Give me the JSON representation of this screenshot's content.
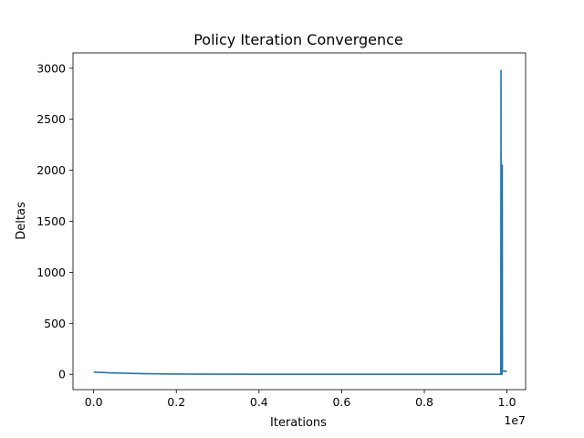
{
  "chart_data": {
    "type": "line",
    "title": "Policy Iteration Convergence",
    "xlabel": "Iterations",
    "ylabel": "Deltas",
    "x_offset_label": "1e7",
    "xlim": [
      -500000,
      10450000
    ],
    "ylim": [
      -150,
      3150
    ],
    "x_ticks": [
      0,
      2000000,
      4000000,
      6000000,
      8000000,
      10000000
    ],
    "x_tick_labels": [
      "0.0",
      "0.2",
      "0.4",
      "0.6",
      "0.8",
      "1.0"
    ],
    "y_ticks": [
      0,
      500,
      1000,
      1500,
      2000,
      2500,
      3000
    ],
    "y_tick_labels": [
      "0",
      "500",
      "1000",
      "1500",
      "2000",
      "2500",
      "3000"
    ],
    "grid": false,
    "series": [
      {
        "color": "#1f77b4",
        "x": [
          0,
          200000,
          500000,
          1000000,
          1500000,
          2000000,
          3000000,
          4000000,
          5000000,
          6000000,
          7000000,
          8000000,
          9000000,
          9600000,
          9850000,
          9855000,
          9860000,
          9880000,
          9885000,
          9890000,
          9900000,
          9950000,
          10000000
        ],
        "y": [
          22,
          18,
          13,
          8,
          5,
          3,
          1.5,
          0.8,
          0.5,
          0.3,
          0.2,
          0.1,
          0.05,
          0.02,
          0.02,
          2980,
          0,
          0,
          2050,
          35,
          30,
          32,
          30
        ]
      }
    ]
  }
}
